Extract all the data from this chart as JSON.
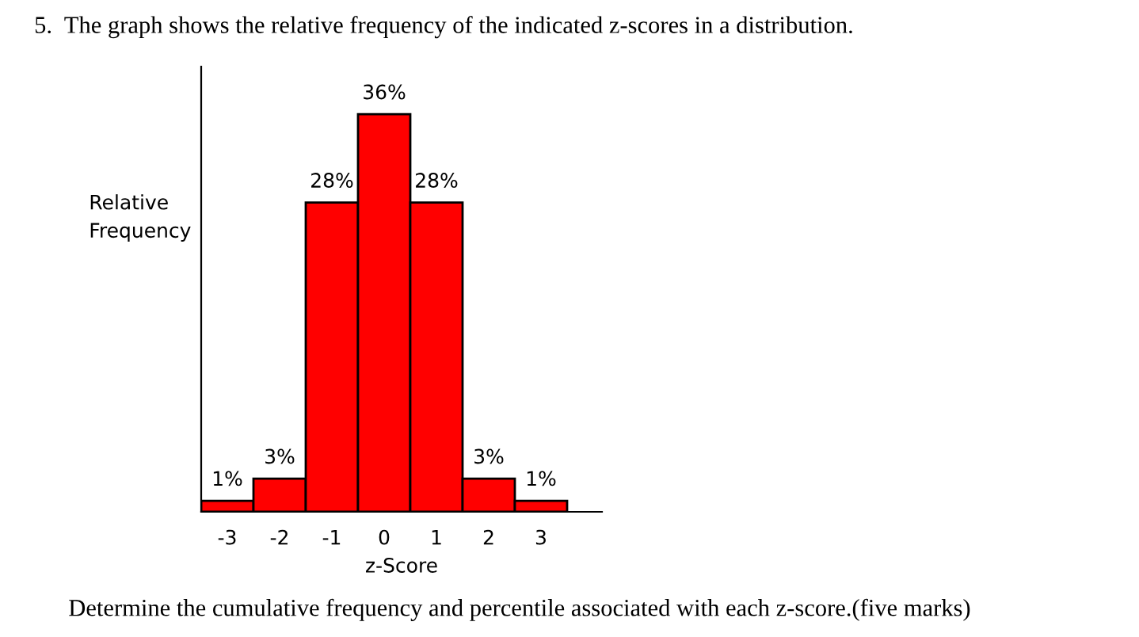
{
  "chart_data": {
    "type": "bar",
    "title": "5.  The graph shows the relative frequency of the indicated z-scores in a distribution.",
    "ylabel": "Relative\nFrequency",
    "xlabel": "z-Score",
    "categories": [
      "-3",
      "-2",
      "-1",
      "0",
      "1",
      "2",
      "3"
    ],
    "values": [
      1,
      3,
      28,
      36,
      28,
      3,
      1
    ],
    "value_labels": [
      "1%",
      "3%",
      "28%",
      "36%",
      "28%",
      "3%",
      "1%"
    ],
    "color": "#ff0000",
    "grid": false,
    "annotations": [
      "Determine the cumulative frequency and percentile associated with each z-score.(five marks)"
    ]
  }
}
